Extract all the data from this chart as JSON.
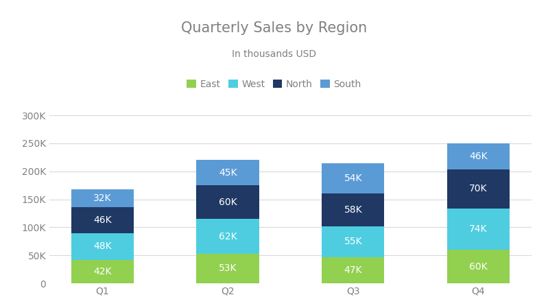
{
  "title": "Quarterly Sales by Region",
  "subtitle": "In thousands USD",
  "categories": [
    "Q1",
    "Q2",
    "Q3",
    "Q4"
  ],
  "regions": [
    "East",
    "West",
    "North",
    "South"
  ],
  "values": {
    "East": [
      42000,
      53000,
      47000,
      60000
    ],
    "West": [
      48000,
      62000,
      55000,
      74000
    ],
    "North": [
      46000,
      60000,
      58000,
      70000
    ],
    "South": [
      32000,
      45000,
      54000,
      46000
    ]
  },
  "colors": {
    "East": "#92d050",
    "West": "#4ecde0",
    "North": "#1f3864",
    "South": "#5b9bd5"
  },
  "labels": {
    "East": [
      "42K",
      "53K",
      "47K",
      "60K"
    ],
    "West": [
      "48K",
      "62K",
      "55K",
      "74K"
    ],
    "North": [
      "46K",
      "60K",
      "58K",
      "70K"
    ],
    "South": [
      "32K",
      "45K",
      "54K",
      "46K"
    ]
  },
  "ylim": [
    0,
    330000
  ],
  "yticks": [
    0,
    50000,
    100000,
    150000,
    200000,
    250000,
    300000
  ],
  "ytick_labels": [
    "0",
    "50K",
    "100K",
    "150K",
    "200K",
    "250K",
    "300K"
  ],
  "background_color": "#ffffff",
  "title_color": "#808080",
  "subtitle_color": "#808080",
  "label_color": "#ffffff",
  "tick_color": "#808080",
  "grid_color": "#d9d9d9",
  "title_fontsize": 15,
  "subtitle_fontsize": 10,
  "label_fontsize": 10,
  "tick_fontsize": 10,
  "legend_fontsize": 10,
  "bar_width": 0.5
}
